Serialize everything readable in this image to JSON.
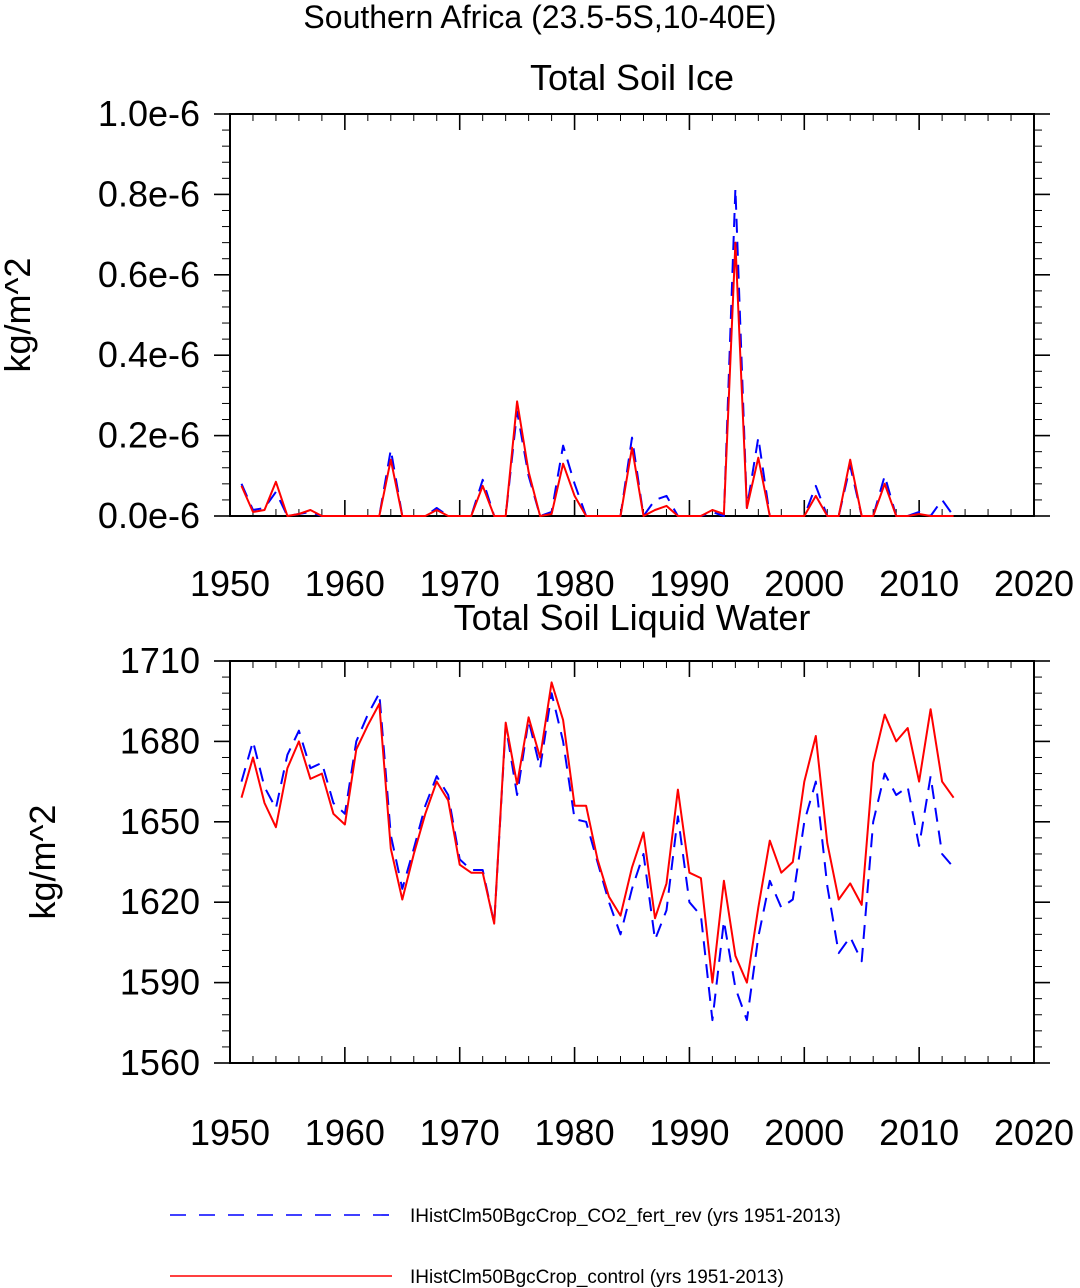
{
  "figure_title": "Southern Africa (23.5-5S,10-40E)",
  "colors": {
    "control": "#ff0000",
    "co2_fert": "#0000ff",
    "axis": "#000000",
    "background": "#ffffff"
  },
  "legend": {
    "position": "bottom",
    "entries": [
      {
        "label": "IHistClm50BgcCrop_CO2_fert_rev (yrs 1951-2013)",
        "color": "#0000ff",
        "style": "dashed"
      },
      {
        "label": "IHistClm50BgcCrop_control (yrs 1951-2013)",
        "color": "#ff0000",
        "style": "solid"
      }
    ]
  },
  "chart_data": [
    {
      "type": "line",
      "title": "Total Soil Ice",
      "xlabel": "",
      "ylabel": "kg/m^2",
      "xlim": [
        1950,
        2020
      ],
      "ylim": [
        0,
        1e-06
      ],
      "xticks": [
        1950,
        1960,
        1970,
        1980,
        1990,
        2000,
        2010,
        2020
      ],
      "xtick_labels": [
        "1950",
        "1960",
        "1970",
        "1980",
        "1990",
        "2000",
        "2010",
        "2020"
      ],
      "yticks": [
        0,
        2e-07,
        4e-07,
        6e-07,
        8e-07,
        1e-06
      ],
      "ytick_labels": [
        "0.0e-6",
        "0.2e-6",
        "0.4e-6",
        "0.6e-6",
        "0.8e-6",
        "1.0e-6"
      ],
      "grid": false,
      "x": [
        1951,
        1952,
        1953,
        1954,
        1955,
        1956,
        1957,
        1958,
        1959,
        1960,
        1961,
        1962,
        1963,
        1964,
        1965,
        1966,
        1967,
        1968,
        1969,
        1970,
        1971,
        1972,
        1973,
        1974,
        1975,
        1976,
        1977,
        1978,
        1979,
        1980,
        1981,
        1982,
        1983,
        1984,
        1985,
        1986,
        1987,
        1988,
        1989,
        1990,
        1991,
        1992,
        1993,
        1994,
        1995,
        1996,
        1997,
        1998,
        1999,
        2000,
        2001,
        2002,
        2003,
        2004,
        2005,
        2006,
        2007,
        2008,
        2009,
        2010,
        2011,
        2012,
        2013
      ],
      "series": [
        {
          "name": "IHistClm50BgcCrop_CO2_fert_rev (yrs 1951-2013)",
          "color": "#0000ff",
          "style": "dashed",
          "values": [
            8e-08,
            1.5e-08,
            2e-08,
            6e-08,
            0,
            5e-09,
            1e-08,
            0,
            0,
            0,
            0,
            0,
            0,
            1.65e-07,
            0,
            0,
            0,
            2e-08,
            0,
            0,
            0,
            9e-08,
            0,
            0,
            2.6e-07,
            1e-07,
            0,
            1e-08,
            1.75e-07,
            8e-08,
            0,
            0,
            0,
            0,
            1.95e-07,
            0,
            4e-08,
            5e-08,
            0,
            0,
            0,
            1e-08,
            0,
            8.15e-07,
            2e-08,
            1.95e-07,
            0,
            0,
            0,
            0,
            7.5e-08,
            0,
            0,
            1.25e-07,
            0,
            0,
            1e-07,
            0,
            0,
            1e-08,
            0,
            4e-08,
            0
          ]
        },
        {
          "name": "IHistClm50BgcCrop_control (yrs 1951-2013)",
          "color": "#ff0000",
          "style": "solid",
          "values": [
            7.5e-08,
            1e-08,
            1.5e-08,
            8.5e-08,
            0,
            5e-09,
            1.5e-08,
            0,
            0,
            0,
            0,
            0,
            0,
            1.4e-07,
            0,
            0,
            0,
            1.5e-08,
            0,
            0,
            0,
            7.5e-08,
            0,
            0,
            2.85e-07,
            1.1e-07,
            0,
            5e-09,
            1.3e-07,
            5e-08,
            0,
            0,
            0,
            0,
            1.7e-07,
            0,
            1.5e-08,
            2.5e-08,
            0,
            0,
            0,
            1.5e-08,
            5e-09,
            6.8e-07,
            2e-08,
            1.45e-07,
            0,
            0,
            0,
            0,
            5e-08,
            0,
            0,
            1.4e-07,
            0,
            0,
            8e-08,
            0,
            0,
            5e-09,
            0,
            0,
            0
          ]
        }
      ]
    },
    {
      "type": "line",
      "title": "Total Soil Liquid Water",
      "xlabel": "",
      "ylabel": "kg/m^2",
      "xlim": [
        1950,
        2020
      ],
      "ylim": [
        1560,
        1710
      ],
      "xticks": [
        1950,
        1960,
        1970,
        1980,
        1990,
        2000,
        2010,
        2020
      ],
      "xtick_labels": [
        "1950",
        "1960",
        "1970",
        "1980",
        "1990",
        "2000",
        "2010",
        "2020"
      ],
      "yticks": [
        1560,
        1590,
        1620,
        1650,
        1680,
        1710
      ],
      "ytick_labels": [
        "1560",
        "1590",
        "1620",
        "1650",
        "1680",
        "1710"
      ],
      "grid": false,
      "x": [
        1951,
        1952,
        1953,
        1954,
        1955,
        1956,
        1957,
        1958,
        1959,
        1960,
        1961,
        1962,
        1963,
        1964,
        1965,
        1966,
        1967,
        1968,
        1969,
        1970,
        1971,
        1972,
        1973,
        1974,
        1975,
        1976,
        1977,
        1978,
        1979,
        1980,
        1981,
        1982,
        1983,
        1984,
        1985,
        1986,
        1987,
        1988,
        1989,
        1990,
        1991,
        1992,
        1993,
        1994,
        1995,
        1996,
        1997,
        1998,
        1999,
        2000,
        2001,
        2002,
        2003,
        2004,
        2005,
        2006,
        2007,
        2008,
        2009,
        2010,
        2011,
        2012,
        2013
      ],
      "series": [
        {
          "name": "IHistClm50BgcCrop_CO2_fert_rev (yrs 1951-2013)",
          "color": "#0000ff",
          "style": "dashed",
          "values": [
            1665,
            1680,
            1663,
            1655,
            1675,
            1684,
            1670,
            1672,
            1657,
            1653,
            1680,
            1690,
            1698,
            1645,
            1625,
            1640,
            1656,
            1667,
            1660,
            1636,
            1632,
            1632,
            1612,
            1686,
            1660,
            1688,
            1670,
            1698,
            1680,
            1651,
            1650,
            1635,
            1620,
            1608,
            1625,
            1638,
            1606,
            1617,
            1652,
            1620,
            1615,
            1576,
            1613,
            1588,
            1576,
            1607,
            1628,
            1618,
            1621,
            1650,
            1665,
            1626,
            1601,
            1607,
            1598,
            1650,
            1668,
            1660,
            1663,
            1641,
            1667,
            1638,
            1633
          ]
        },
        {
          "name": "IHistClm50BgcCrop_control (yrs 1951-2013)",
          "color": "#ff0000",
          "style": "solid",
          "values": [
            1659,
            1674,
            1657,
            1648,
            1670,
            1680,
            1666,
            1668,
            1653,
            1649,
            1677,
            1686,
            1694,
            1640,
            1621,
            1638,
            1653,
            1665,
            1658,
            1634,
            1631,
            1631,
            1612,
            1687,
            1664,
            1689,
            1674,
            1702,
            1688,
            1656,
            1656,
            1636,
            1622,
            1615,
            1633,
            1646,
            1614,
            1627,
            1662,
            1631,
            1629,
            1590,
            1628,
            1600,
            1590,
            1618,
            1643,
            1631,
            1635,
            1665,
            1682,
            1642,
            1621,
            1627,
            1619,
            1672,
            1690,
            1680,
            1685,
            1665,
            1692,
            1665,
            1659
          ]
        }
      ]
    }
  ]
}
